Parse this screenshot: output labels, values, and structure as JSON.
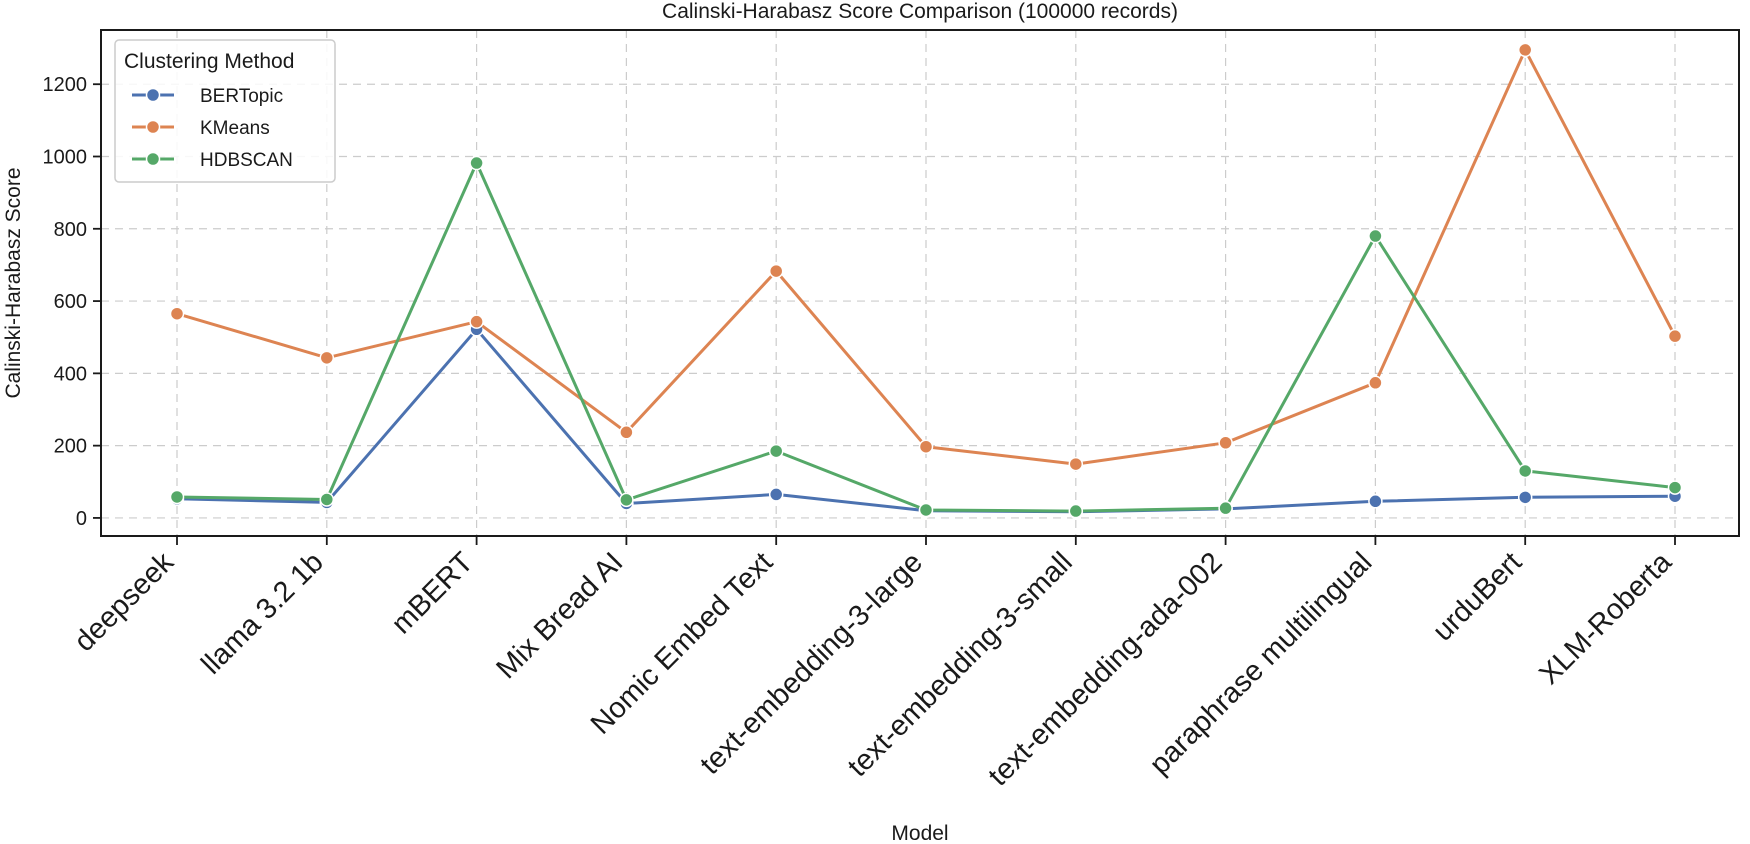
{
  "chart_data": {
    "type": "line",
    "title": "Calinski-Harabasz Score Comparison (100000 records)",
    "xlabel": "Model",
    "ylabel": "Calinski-Harabasz Score",
    "categories": [
      "deepseek",
      "llama 3.2 1b",
      "mBERT",
      "Mix Bread AI",
      "Nomic Embed Text",
      "text-embedding-3-large",
      "text-embedding-3-small",
      "text-embedding-ada-002",
      "paraphrase multilingual",
      "urduBert",
      "XLM-Roberta"
    ],
    "ylim": [
      -50,
      1350
    ],
    "yticks": [
      0,
      200,
      400,
      600,
      800,
      1000,
      1200
    ],
    "grid": true,
    "legend": {
      "title": "Clustering Method",
      "position": "top-left"
    },
    "series": [
      {
        "name": "BERTopic",
        "color": "#4c72b0",
        "values": [
          53,
          43,
          522,
          40,
          65,
          20,
          17,
          25,
          46,
          57,
          60
        ]
      },
      {
        "name": "KMeans",
        "color": "#dd8452",
        "values": [
          565,
          443,
          543,
          237,
          683,
          197,
          149,
          208,
          374,
          1295,
          503
        ]
      },
      {
        "name": "HDBSCAN",
        "color": "#55a868",
        "values": [
          58,
          51,
          982,
          50,
          185,
          22,
          19,
          27,
          780,
          130,
          84
        ]
      }
    ]
  }
}
